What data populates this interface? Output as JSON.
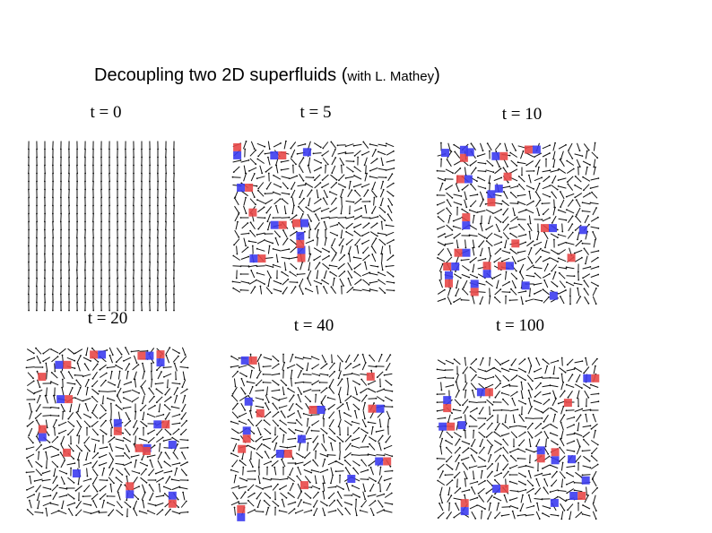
{
  "title": {
    "main": "Decoupling two 2D superfluids (",
    "aside": "with L. Mathey",
    "close": ")"
  },
  "panels": [
    {
      "label": "t = 0"
    },
    {
      "label": "t = 5"
    },
    {
      "label": "t = 10"
    },
    {
      "label": "t = 20"
    },
    {
      "label": "t = 40"
    },
    {
      "label": "t = 100"
    }
  ]
}
